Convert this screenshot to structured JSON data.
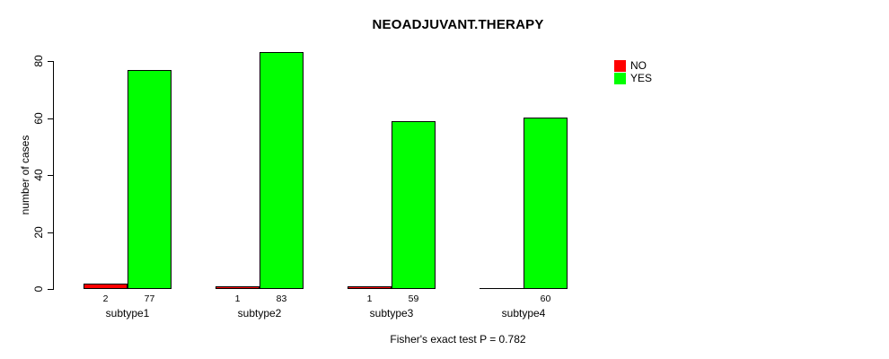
{
  "chart_data": {
    "type": "bar",
    "title": "NEOADJUVANT.THERAPY",
    "xlabel": "",
    "ylabel": "number of cases",
    "annotation": "Fisher's exact test P = 0.782",
    "categories": [
      "subtype1",
      "subtype2",
      "subtype3",
      "subtype4"
    ],
    "series": [
      {
        "name": "NO",
        "color": "#ff0000",
        "values": [
          2,
          1,
          1,
          0
        ],
        "bar_labels": [
          "2",
          "1",
          "1",
          ""
        ]
      },
      {
        "name": "YES",
        "color": "#00ff00",
        "values": [
          77,
          83,
          59,
          60
        ],
        "bar_labels": [
          "77",
          "83",
          "59",
          "60"
        ]
      }
    ],
    "ylim": [
      0,
      80
    ],
    "yticks": [
      0,
      20,
      40,
      60,
      80
    ],
    "grid": false,
    "legend_position": "top-right",
    "bar_border_color": "#000000",
    "background_color": "#ffffff"
  }
}
